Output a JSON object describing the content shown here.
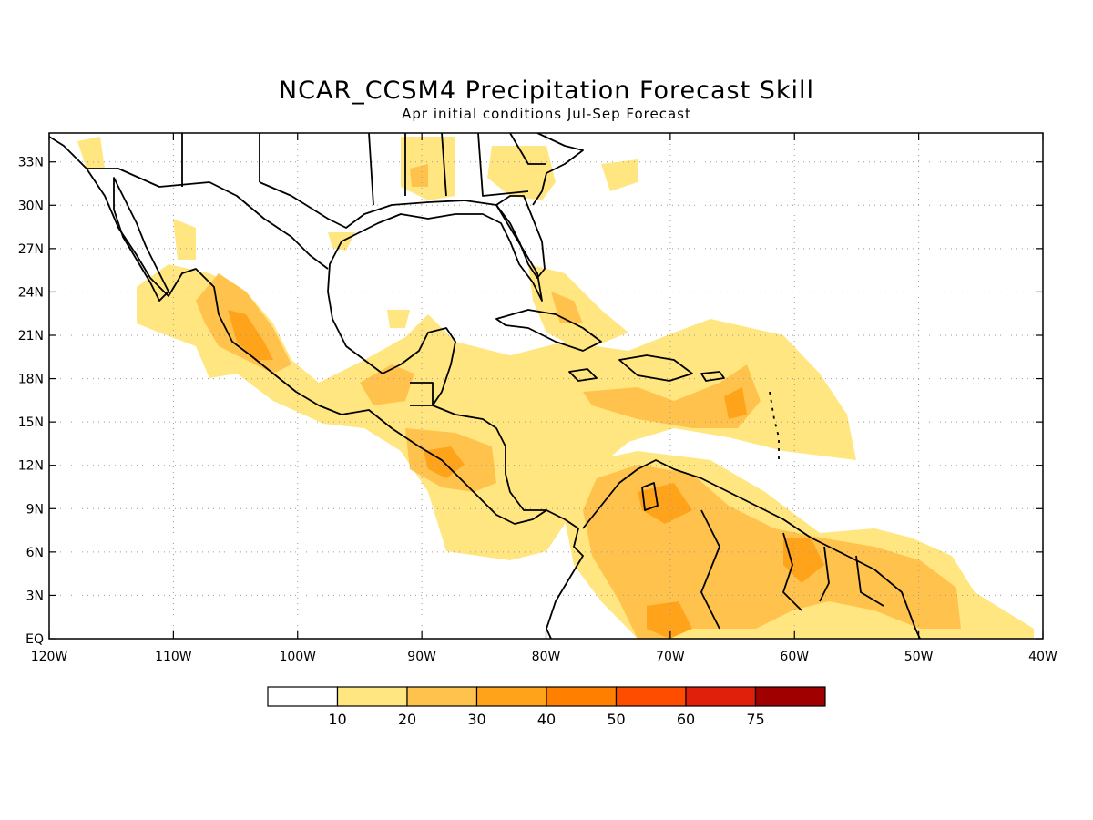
{
  "title": "NCAR_CCSM4 Precipitation Forecast Skill",
  "subtitle": "Apr initial conditions  Jul-Sep Forecast",
  "map": {
    "lon_range": [
      -120,
      -40
    ],
    "lat_range": [
      0,
      35
    ],
    "lon_ticks": [
      {
        "value": -120,
        "label": "120W"
      },
      {
        "value": -110,
        "label": "110W"
      },
      {
        "value": -100,
        "label": "100W"
      },
      {
        "value": -90,
        "label": "90W"
      },
      {
        "value": -80,
        "label": "80W"
      },
      {
        "value": -70,
        "label": "70W"
      },
      {
        "value": -60,
        "label": "60W"
      },
      {
        "value": -50,
        "label": "50W"
      },
      {
        "value": -40,
        "label": "40W"
      }
    ],
    "lat_ticks": [
      {
        "value": 0,
        "label": "EQ"
      },
      {
        "value": 3,
        "label": "3N"
      },
      {
        "value": 6,
        "label": "6N"
      },
      {
        "value": 9,
        "label": "9N"
      },
      {
        "value": 12,
        "label": "12N"
      },
      {
        "value": 15,
        "label": "15N"
      },
      {
        "value": 18,
        "label": "18N"
      },
      {
        "value": 21,
        "label": "21N"
      },
      {
        "value": 24,
        "label": "24N"
      },
      {
        "value": 27,
        "label": "27N"
      },
      {
        "value": 30,
        "label": "30N"
      },
      {
        "value": 33,
        "label": "33N"
      }
    ],
    "gridlines": "dotted",
    "colors": {
      "c10": "#ffe680",
      "c20": "#ffc34d",
      "c30": "#ffa31a"
    }
  },
  "colorbar": {
    "levels": [
      "10",
      "20",
      "30",
      "40",
      "50",
      "60",
      "75"
    ],
    "colors": [
      "#ffffff",
      "#ffe680",
      "#ffc34d",
      "#ffa31a",
      "#ff7f00",
      "#ff4d00",
      "#e0200a",
      "#a00000"
    ]
  }
}
